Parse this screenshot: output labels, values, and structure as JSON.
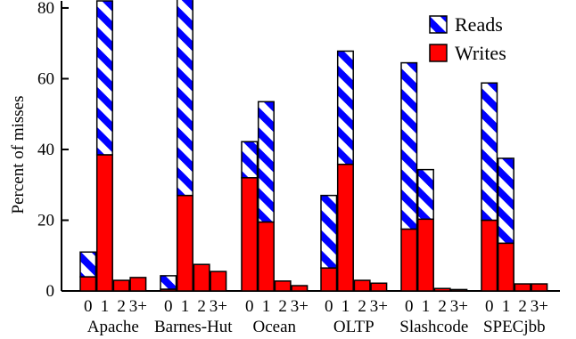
{
  "chart_data": {
    "type": "bar",
    "subtype": "stacked-grouped",
    "ylabel": "Percent of misses",
    "ylim": [
      0,
      82
    ],
    "yticks": [
      0,
      20,
      40,
      60,
      80
    ],
    "grid": false,
    "legend_position": "top-right",
    "x_sublabels": [
      "0",
      "1",
      "2",
      "3+"
    ],
    "groups": [
      "Apache",
      "Barnes-Hut",
      "Ocean",
      "OLTP",
      "Slashcode",
      "SPECjbb"
    ],
    "series": [
      {
        "name": "Writes",
        "color": "#ff0000",
        "pattern": "solid",
        "values": [
          [
            4.0,
            38.5,
            3.0,
            3.8
          ],
          [
            0.5,
            27.0,
            7.5,
            5.5
          ],
          [
            32.0,
            19.5,
            2.8,
            1.5
          ],
          [
            6.5,
            35.8,
            3.0,
            2.2
          ],
          [
            17.5,
            20.3,
            0.7,
            0.4
          ],
          [
            20.0,
            13.5,
            2.0,
            2.0
          ]
        ]
      },
      {
        "name": "Reads",
        "color": "#0000ff",
        "pattern": "diagonal-stripes",
        "values": [
          [
            7.0,
            43.5,
            0,
            0
          ],
          [
            3.8,
            55.5,
            0,
            0
          ],
          [
            10.2,
            34.0,
            0,
            0
          ],
          [
            20.5,
            32.0,
            0,
            0
          ],
          [
            47.0,
            14.0,
            0,
            0
          ],
          [
            38.8,
            24.0,
            0,
            0
          ]
        ]
      }
    ]
  }
}
